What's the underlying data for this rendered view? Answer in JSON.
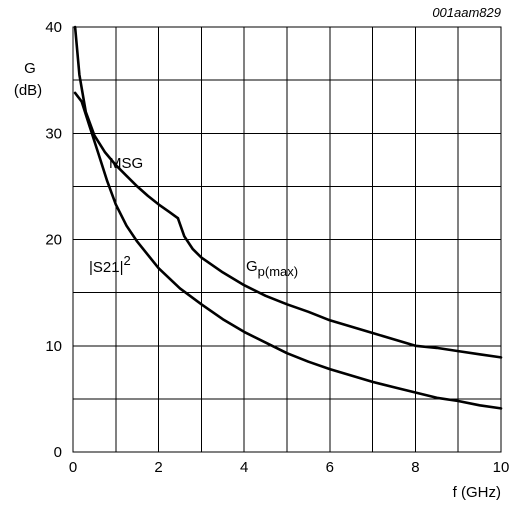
{
  "chart_data": {
    "type": "line",
    "code": "001aam829",
    "ylabel_line1": "G",
    "ylabel_line2": "(dB)",
    "xlabel": "f (GHz)",
    "xlim": [
      0,
      10
    ],
    "ylim": [
      0,
      40
    ],
    "x_major_ticks": [
      0,
      2,
      4,
      6,
      8,
      10
    ],
    "x_grid": [
      0,
      1,
      2,
      3,
      4,
      5,
      6,
      7,
      8,
      9,
      10
    ],
    "y_major_ticks": [
      0,
      10,
      20,
      30,
      40
    ],
    "y_grid": [
      0,
      5,
      10,
      15,
      20,
      25,
      30,
      35,
      40
    ],
    "grid": true,
    "series": [
      {
        "name": "MSG",
        "x": [
          0.05,
          0.15,
          0.3,
          0.5,
          0.75,
          1.0,
          1.25,
          1.5,
          1.75,
          2.0,
          2.25,
          2.45
        ],
        "y": [
          40.0,
          35.5,
          32.0,
          29.8,
          28.2,
          27.0,
          26.0,
          25.0,
          24.1,
          23.3,
          22.6,
          22.0
        ]
      },
      {
        "name": "Gp(max)",
        "x": [
          2.45,
          2.6,
          2.8,
          3.0,
          3.5,
          4.0,
          4.5,
          5.0,
          5.5,
          6.0,
          6.5,
          7.0,
          7.5,
          8.0,
          8.5,
          9.0,
          9.5,
          10.0
        ],
        "y": [
          22.0,
          20.3,
          19.1,
          18.3,
          16.9,
          15.7,
          14.7,
          13.9,
          13.2,
          12.4,
          11.8,
          11.2,
          10.6,
          10.0,
          9.8,
          9.5,
          9.2,
          8.9
        ]
      },
      {
        "name": "|S21|2",
        "x": [
          0.05,
          0.2,
          0.4,
          0.6,
          0.8,
          1.0,
          1.25,
          1.5,
          2.0,
          2.5,
          3.0,
          3.5,
          4.0,
          4.5,
          5.0,
          5.5,
          6.0,
          6.5,
          7.0,
          7.5,
          8.0,
          8.5,
          9.0,
          9.5,
          10.0
        ],
        "y": [
          33.8,
          33.0,
          30.5,
          28.0,
          25.5,
          23.3,
          21.3,
          19.8,
          17.3,
          15.4,
          13.9,
          12.5,
          11.3,
          10.3,
          9.3,
          8.5,
          7.8,
          7.2,
          6.6,
          6.1,
          5.6,
          5.1,
          4.8,
          4.4,
          4.1
        ]
      }
    ],
    "annotations": {
      "msg": "MSG",
      "gp_main": "G",
      "gp_sub": "p(max)",
      "s21_main": "|S21|",
      "s21_sup": "2"
    }
  }
}
